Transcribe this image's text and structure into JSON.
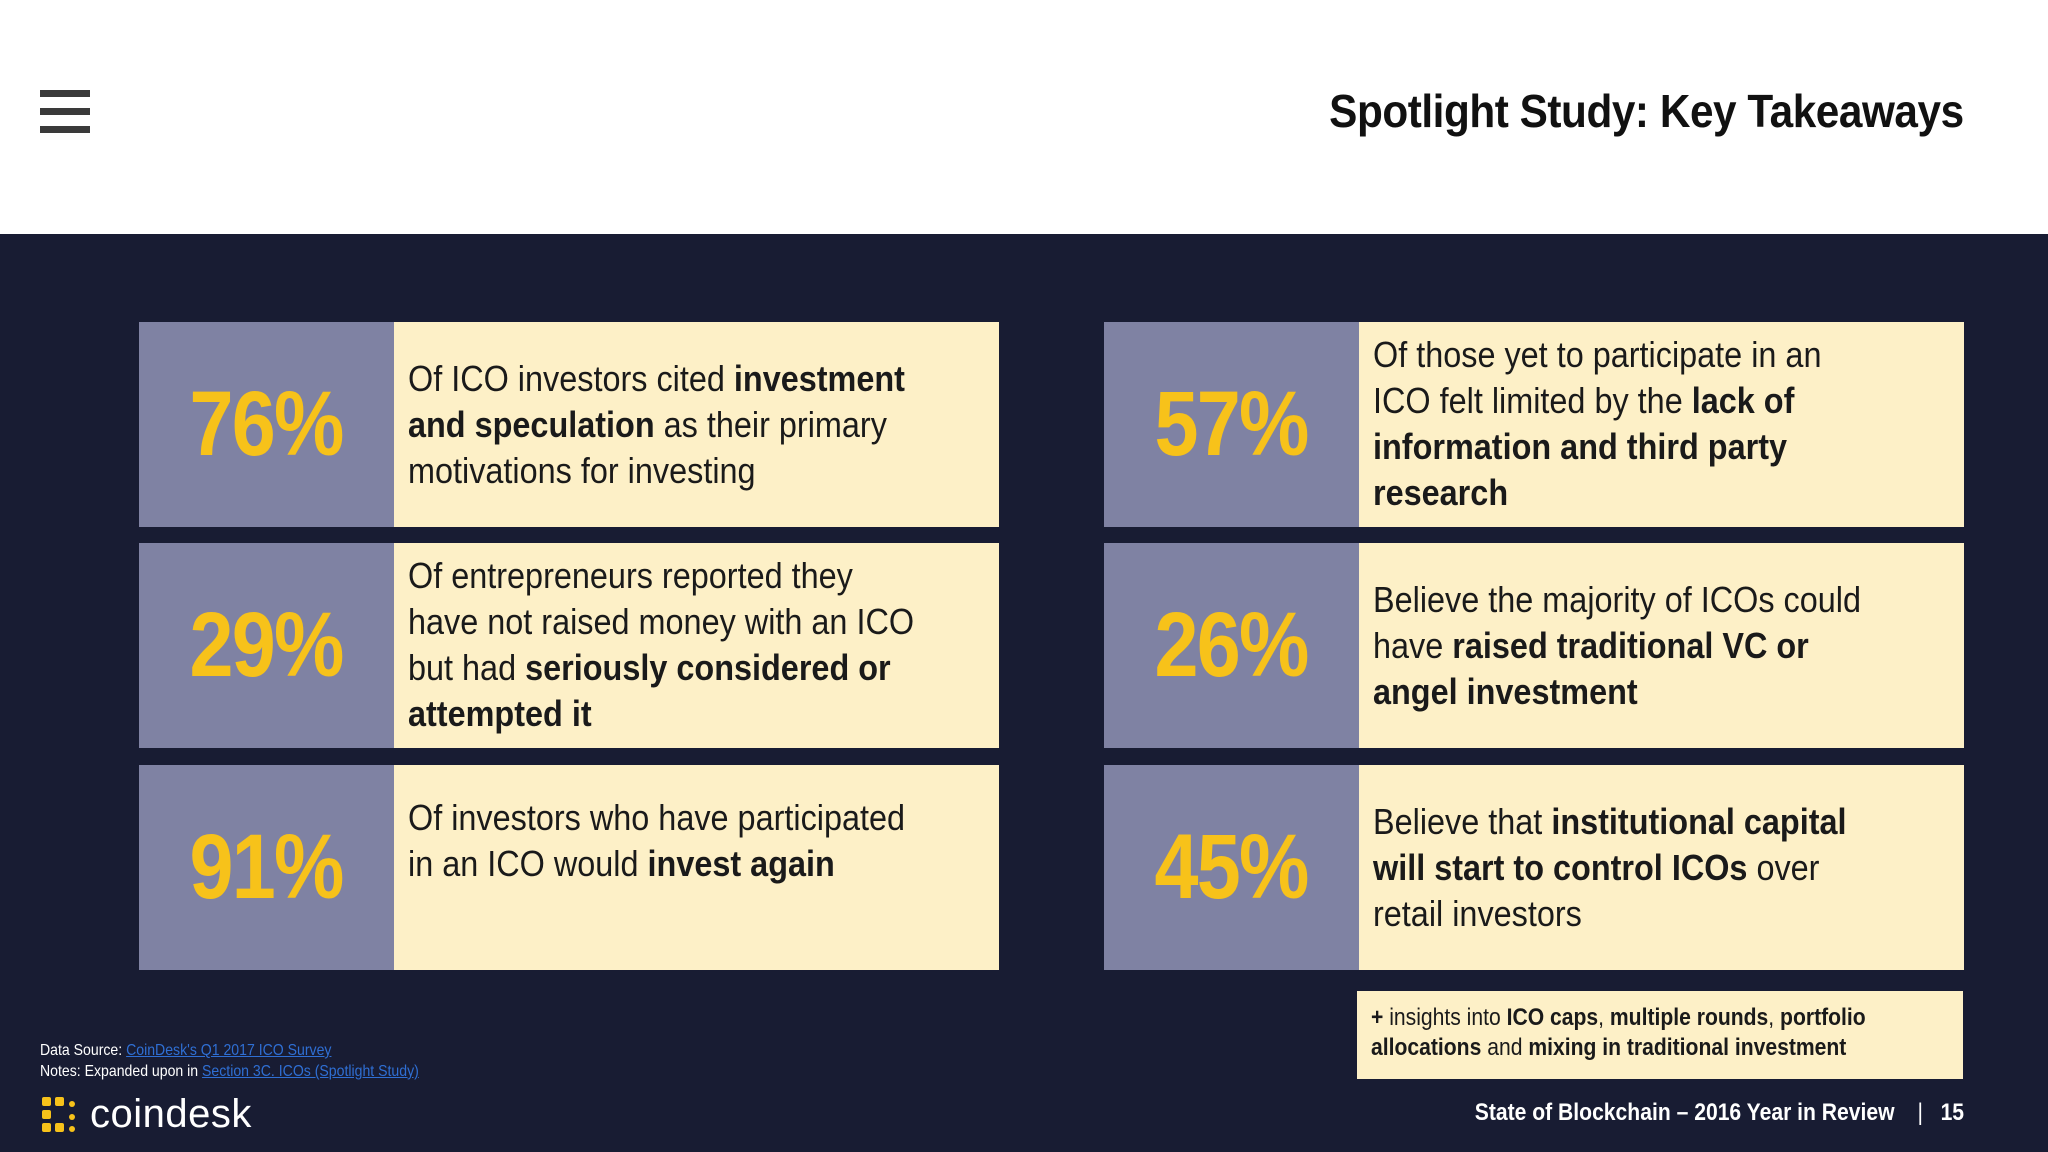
{
  "header": {
    "title": "Spotlight Study: Key Takeaways"
  },
  "cards": [
    {
      "pct": "76%",
      "parts": [
        {
          "t": "Of ICO investors cited ",
          "b": false
        },
        {
          "t": "investment and speculation",
          "b": true
        },
        {
          "t": " as their primary motivations for investing",
          "b": false
        }
      ]
    },
    {
      "pct": "57%",
      "parts": [
        {
          "t": "Of those yet to participate in an ICO felt limited by the ",
          "b": false
        },
        {
          "t": "lack of information and third party research",
          "b": true
        }
      ]
    },
    {
      "pct": "29%",
      "parts": [
        {
          "t": "Of entrepreneurs reported they have not raised money with an ICO but had ",
          "b": false
        },
        {
          "t": "seriously considered or attempted it",
          "b": true
        }
      ]
    },
    {
      "pct": "26%",
      "parts": [
        {
          "t": "Believe the majority of ICOs could have ",
          "b": false
        },
        {
          "t": "raised traditional VC or angel investment",
          "b": true
        }
      ]
    },
    {
      "pct": "91%",
      "parts": [
        {
          "t": "Of investors who have participated in an ICO would ",
          "b": false
        },
        {
          "t": "invest again",
          "b": true
        }
      ]
    },
    {
      "pct": "45%",
      "parts": [
        {
          "t": "Believe that ",
          "b": false
        },
        {
          "t": "institutional capital will start to control ICOs",
          "b": true
        },
        {
          "t": " over retail investors",
          "b": false
        }
      ]
    }
  ],
  "insights": {
    "parts": [
      {
        "t": "+ ",
        "b": true
      },
      {
        "t": "insights into ",
        "b": false
      },
      {
        "t": "ICO caps",
        "b": true
      },
      {
        "t": ", ",
        "b": false
      },
      {
        "t": "multiple rounds",
        "b": true
      },
      {
        "t": ", ",
        "b": false
      },
      {
        "t": "portfolio allocations",
        "b": true
      },
      {
        "t": " and ",
        "b": false
      },
      {
        "t": "mixing in traditional investment",
        "b": true
      }
    ]
  },
  "source": {
    "data_label": "Data Source: ",
    "data_link": "CoinDesk's Q1 2017 ICO Survey",
    "notes_label": "Notes: Expanded upon in ",
    "notes_link": "Section 3C. ICOs (Spotlight Study)"
  },
  "logo": {
    "text": "coindesk"
  },
  "footer": {
    "report": "State of Blockchain – 2016 Year in Review",
    "separator": "|",
    "page": "15"
  },
  "colors": {
    "navy": "#181c33",
    "slate": "#7f82a3",
    "cream": "#fdf0c7",
    "gold": "#f7c21a"
  }
}
